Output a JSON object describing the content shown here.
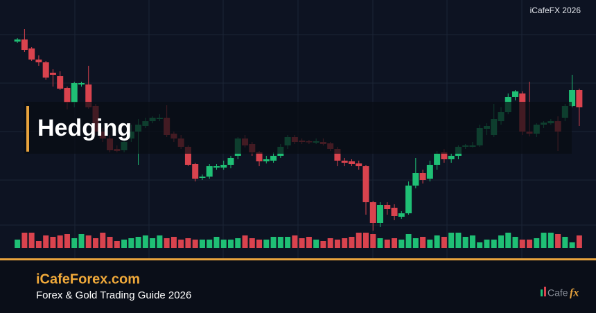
{
  "chart_data": {
    "type": "candlestick",
    "title": "Hedging",
    "up_color": "#1fbf75",
    "down_color": "#d9434e",
    "ylim": [
      0,
      330
    ],
    "y2lim": [
      0,
      100
    ],
    "open": [
      300,
      303,
      290,
      274,
      270,
      255,
      250,
      233,
      212,
      238,
      238,
      207,
      170,
      160,
      145,
      143,
      160,
      170,
      178,
      185,
      188,
      190,
      167,
      160,
      148,
      123,
      103,
      105,
      118,
      118,
      122,
      135,
      160,
      152,
      140,
      127,
      128,
      135,
      150,
      162,
      157,
      156,
      154,
      155,
      153,
      145,
      128,
      127,
      124,
      120,
      68,
      38,
      64,
      60,
      47,
      52,
      92,
      110,
      102,
      122,
      140,
      130,
      135,
      148,
      148,
      150,
      174,
      165,
      185,
      198,
      220,
      225,
      170,
      167,
      180,
      182,
      185,
      190,
      207,
      230
    ],
    "high": [
      305,
      318,
      292,
      280,
      272,
      260,
      257,
      235,
      242,
      242,
      265,
      210,
      175,
      165,
      150,
      160,
      180,
      188,
      190,
      192,
      195,
      208,
      170,
      165,
      150,
      125,
      108,
      123,
      123,
      128,
      135,
      162,
      165,
      155,
      142,
      135,
      140,
      152,
      165,
      165,
      160,
      158,
      160,
      160,
      155,
      148,
      132,
      130,
      128,
      122,
      70,
      68,
      68,
      65,
      55,
      98,
      132,
      115,
      128,
      142,
      145,
      138,
      150,
      152,
      155,
      180,
      182,
      210,
      205,
      225,
      230,
      228,
      242,
      182,
      185,
      188,
      192,
      210,
      252,
      232
    ],
    "low": [
      298,
      285,
      272,
      265,
      245,
      235,
      230,
      202,
      205,
      235,
      203,
      165,
      155,
      140,
      140,
      140,
      155,
      122,
      175,
      182,
      185,
      162,
      155,
      145,
      120,
      98,
      100,
      102,
      115,
      115,
      117,
      130,
      147,
      135,
      120,
      124,
      125,
      132,
      145,
      152,
      152,
      152,
      152,
      150,
      142,
      120,
      120,
      120,
      115,
      50,
      27,
      32,
      50,
      42,
      44,
      50,
      88,
      95,
      98,
      115,
      125,
      125,
      130,
      145,
      147,
      148,
      165,
      162,
      180,
      195,
      215,
      165,
      163,
      162,
      175,
      180,
      142,
      185,
      205,
      178
    ],
    "close": [
      303,
      288,
      274,
      270,
      248,
      252,
      232,
      212,
      240,
      240,
      205,
      170,
      160,
      143,
      142,
      155,
      170,
      180,
      185,
      190,
      190,
      165,
      160,
      148,
      122,
      102,
      105,
      120,
      120,
      122,
      132,
      160,
      150,
      140,
      127,
      130,
      135,
      148,
      162,
      155,
      155,
      155,
      156,
      152,
      145,
      128,
      125,
      123,
      120,
      68,
      38,
      64,
      58,
      48,
      52,
      92,
      110,
      100,
      122,
      138,
      130,
      135,
      148,
      150,
      150,
      175,
      178,
      188,
      198,
      220,
      228,
      170,
      167,
      180,
      183,
      185,
      170,
      207,
      230,
      205
    ],
    "volume": [
      12,
      22,
      22,
      10,
      18,
      16,
      18,
      20,
      14,
      20,
      18,
      14,
      22,
      16,
      10,
      12,
      14,
      16,
      18,
      14,
      18,
      14,
      16,
      12,
      14,
      12,
      12,
      12,
      16,
      12,
      12,
      14,
      18,
      14,
      12,
      12,
      16,
      16,
      16,
      18,
      14,
      16,
      12,
      10,
      14,
      12,
      14,
      16,
      22,
      22,
      20,
      14,
      12,
      14,
      12,
      20,
      14,
      16,
      12,
      18,
      16,
      22,
      22,
      16,
      18,
      8,
      12,
      12,
      18,
      22,
      16,
      12,
      12,
      14,
      22,
      22,
      20,
      16,
      8,
      18
    ]
  },
  "watermark": "iCafeFX 2026",
  "site": "iCafeForex.com",
  "subtitle": "Forex & Gold Trading Guide 2026",
  "logo": {
    "text": "Cafe",
    "accent": "fx"
  }
}
